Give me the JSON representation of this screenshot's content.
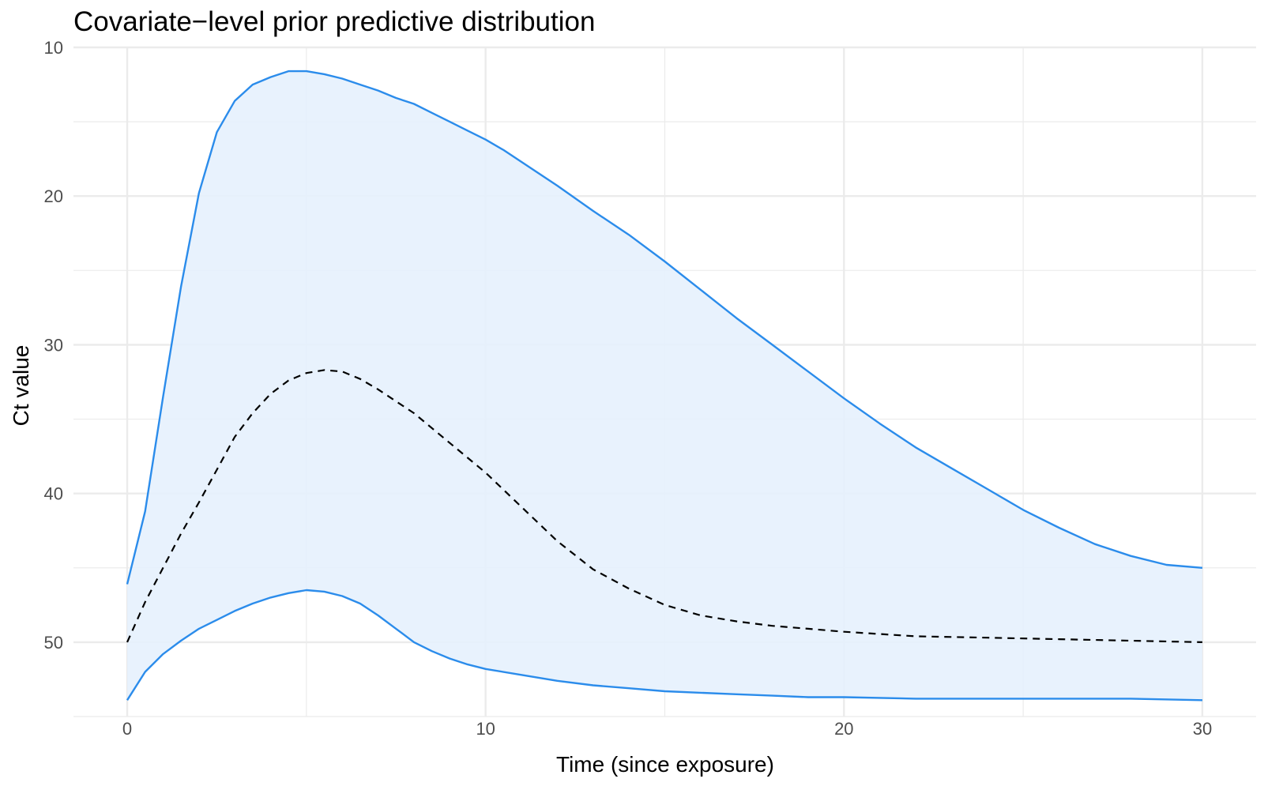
{
  "chart_data": {
    "type": "area",
    "title": "Covariate−level prior predictive distribution",
    "xlabel": "Time (since exposure)",
    "ylabel": "Ct value",
    "xlim": [
      -1.5,
      31.5
    ],
    "ylim": [
      10,
      55
    ],
    "y_reversed": true,
    "x_ticks": [
      0,
      10,
      20,
      30
    ],
    "x_tick_labels": [
      "0",
      "10",
      "20",
      "30"
    ],
    "x_minor_ticks": [
      5,
      15,
      25
    ],
    "y_ticks": [
      10,
      20,
      30,
      40,
      50
    ],
    "y_tick_labels": [
      "10",
      "20",
      "30",
      "40",
      "50"
    ],
    "y_minor_ticks": [
      15,
      25,
      35,
      45,
      55
    ],
    "grid": true,
    "legend": "none",
    "colors": {
      "band_line": "#2b8ceb",
      "band_fill": "#e6f1fd",
      "median_line": "#000000"
    },
    "series": [
      {
        "role": "upper_bound",
        "style": "solid",
        "x": [
          0,
          0.5,
          1,
          1.5,
          2,
          2.5,
          3,
          3.5,
          4,
          4.5,
          5,
          5.5,
          6,
          6.5,
          7,
          7.5,
          8,
          8.5,
          9,
          9.5,
          10,
          10.5,
          11,
          12,
          13,
          14,
          15,
          16,
          17,
          18,
          19,
          20,
          21,
          22,
          23,
          24,
          25,
          26,
          27,
          28,
          29,
          30
        ],
        "y": [
          46.1,
          41.2,
          33.5,
          26.1,
          19.8,
          15.7,
          13.6,
          12.5,
          12.0,
          11.6,
          11.6,
          11.8,
          12.1,
          12.5,
          12.9,
          13.4,
          13.8,
          14.4,
          15.0,
          15.6,
          16.2,
          16.9,
          17.7,
          19.3,
          21.0,
          22.6,
          24.4,
          26.3,
          28.2,
          30.0,
          31.8,
          33.6,
          35.3,
          36.9,
          38.3,
          39.7,
          41.1,
          42.3,
          43.4,
          44.2,
          44.8,
          45.0
        ]
      },
      {
        "role": "median",
        "style": "dashed",
        "x": [
          0,
          0.5,
          1,
          1.5,
          2,
          2.5,
          3,
          3.5,
          4,
          4.5,
          5,
          5.5,
          6,
          6.5,
          7,
          7.5,
          8,
          8.5,
          9,
          9.5,
          10,
          11,
          12,
          13,
          14,
          15,
          16,
          17,
          18,
          19,
          20,
          22,
          24,
          26,
          28,
          30
        ],
        "y": [
          50.0,
          47.3,
          45.0,
          42.7,
          40.6,
          38.4,
          36.2,
          34.6,
          33.3,
          32.4,
          31.9,
          31.7,
          31.8,
          32.3,
          33.0,
          33.8,
          34.6,
          35.6,
          36.6,
          37.6,
          38.6,
          40.9,
          43.2,
          45.1,
          46.4,
          47.5,
          48.2,
          48.6,
          48.9,
          49.1,
          49.3,
          49.6,
          49.7,
          49.8,
          49.9,
          50.0
        ]
      },
      {
        "role": "lower_bound",
        "style": "solid",
        "x": [
          0,
          0.5,
          1,
          1.5,
          2,
          2.5,
          3,
          3.5,
          4,
          4.5,
          5,
          5.5,
          6,
          6.5,
          7,
          7.5,
          8,
          8.5,
          9,
          9.5,
          10,
          11,
          12,
          13,
          14,
          15,
          16,
          17,
          18,
          19,
          20,
          22,
          24,
          26,
          28,
          30
        ],
        "y": [
          53.9,
          52.0,
          50.8,
          49.9,
          49.1,
          48.5,
          47.9,
          47.4,
          47.0,
          46.7,
          46.5,
          46.6,
          46.9,
          47.4,
          48.2,
          49.1,
          50.0,
          50.6,
          51.1,
          51.5,
          51.8,
          52.2,
          52.6,
          52.9,
          53.1,
          53.3,
          53.4,
          53.5,
          53.6,
          53.7,
          53.7,
          53.8,
          53.8,
          53.8,
          53.8,
          53.9
        ]
      }
    ]
  }
}
